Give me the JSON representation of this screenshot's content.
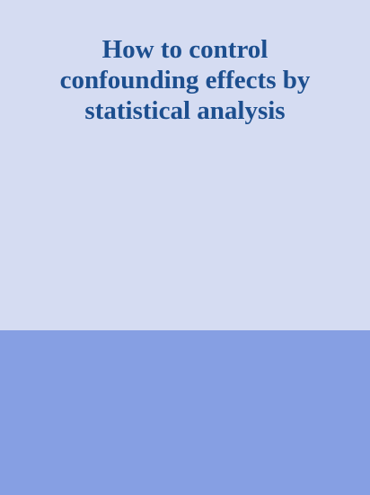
{
  "cover": {
    "title": "How to control\nconfounding effects by\nstatistical analysis",
    "colors": {
      "top_background": "#d5dcf2",
      "bottom_band": "#869fe3",
      "title_text": "#1d4f8f"
    }
  }
}
